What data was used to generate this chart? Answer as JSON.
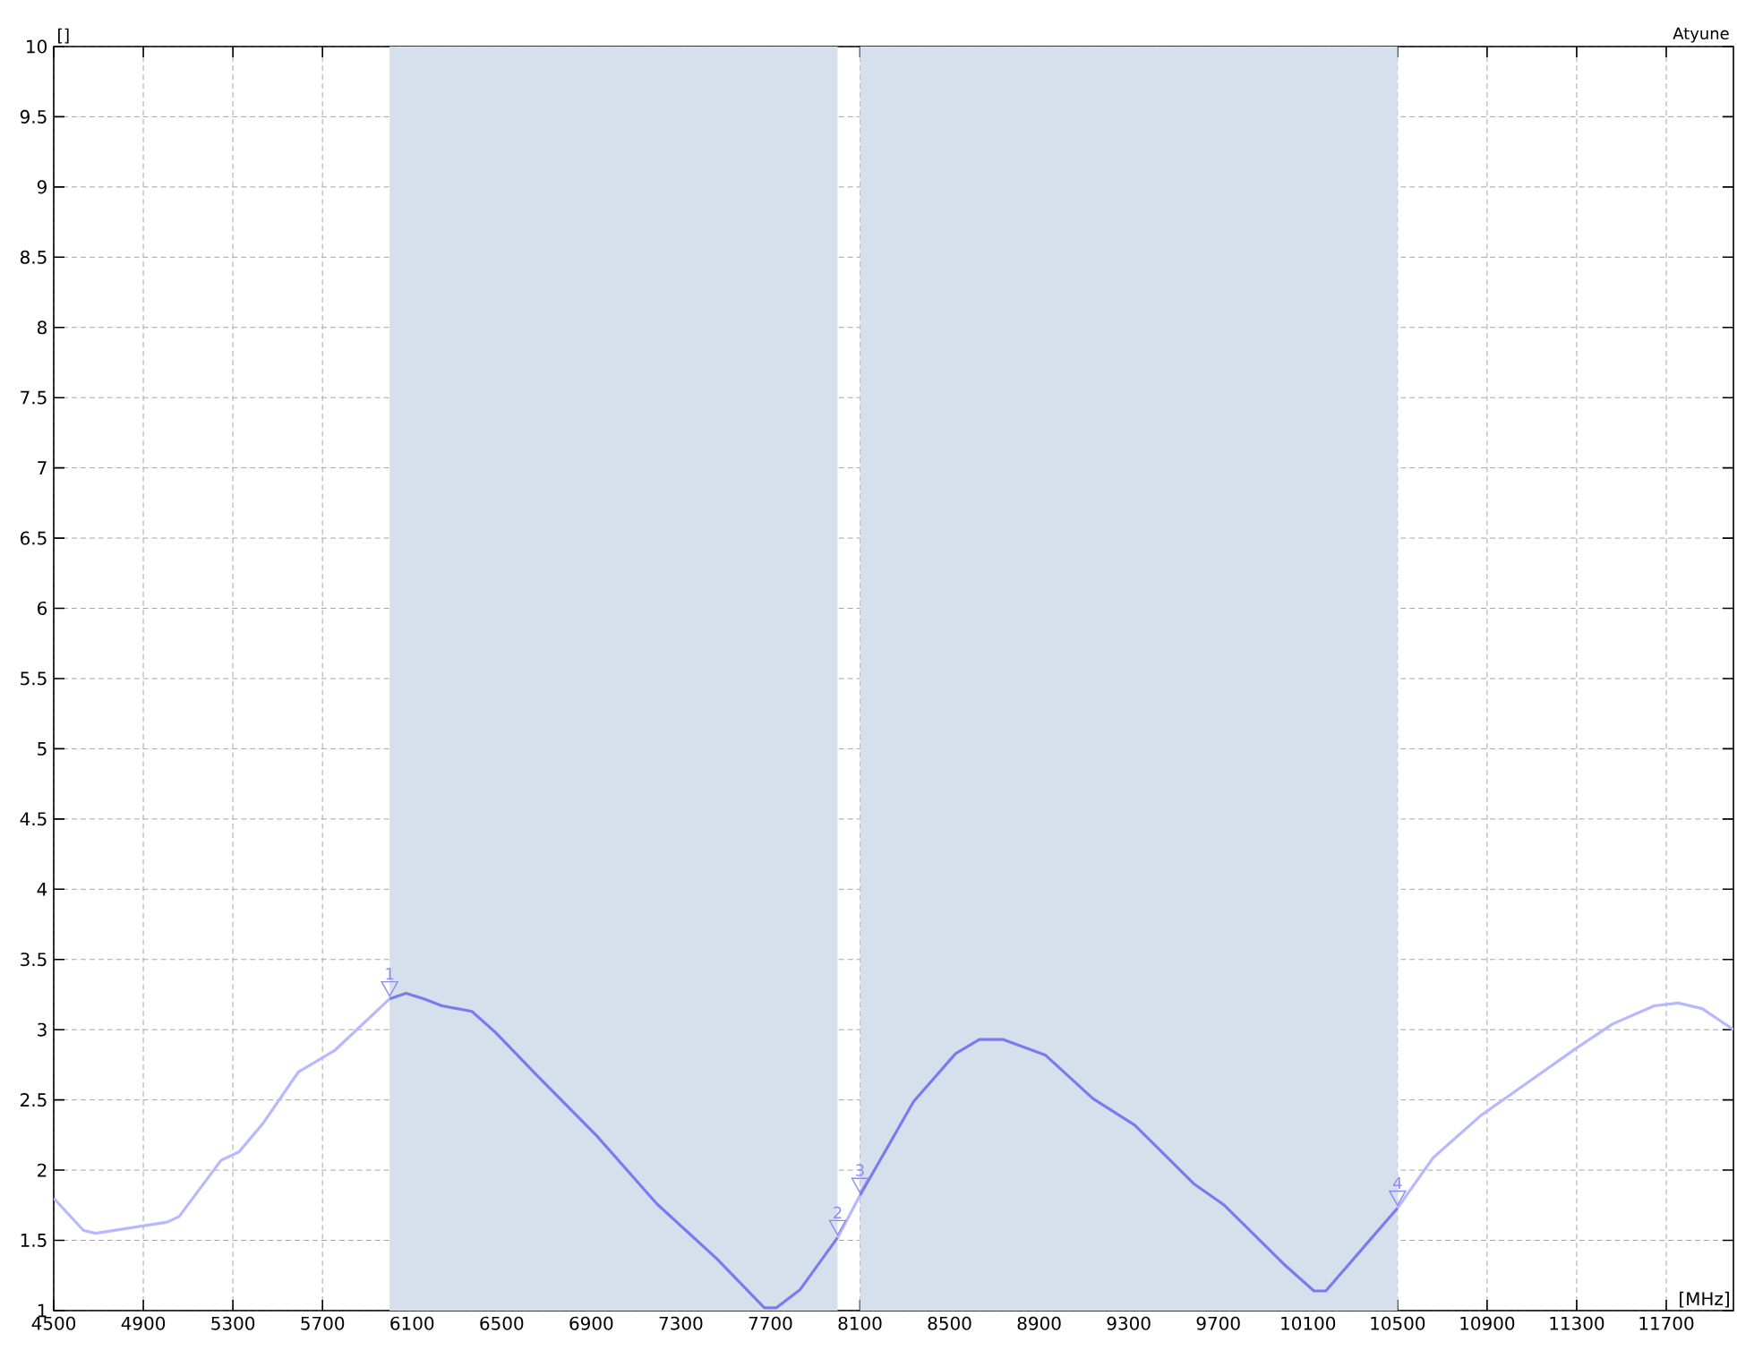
{
  "chart_data": {
    "type": "line",
    "title": "Atyune",
    "xlabel": "[MHz]",
    "ylabel": "[]",
    "xlim": [
      4500,
      12000
    ],
    "ylim": [
      1,
      10
    ],
    "xticks": [
      4500,
      4900,
      5300,
      5700,
      6100,
      6500,
      6900,
      7300,
      7700,
      8100,
      8500,
      8900,
      9300,
      9700,
      10100,
      10500,
      10900,
      11300,
      11700
    ],
    "yticks": [
      1,
      1.5,
      2,
      2.5,
      3,
      3.5,
      4,
      4.5,
      5,
      5.5,
      6,
      6.5,
      7,
      7.5,
      8,
      8.5,
      9,
      9.5,
      10
    ],
    "grid": true,
    "bands": [
      {
        "axis": "x",
        "from": 6000,
        "to": 8000,
        "color": "#d5e0ec"
      },
      {
        "axis": "x",
        "from": 8100,
        "to": 10500,
        "color": "#d5e0ec"
      }
    ],
    "series": [
      {
        "color": "#b8b8ff",
        "x": [
          4500,
          4633,
          4687,
          5007,
          5060,
          5247,
          5327,
          5433,
          5593,
          5753,
          6000
        ],
        "values": [
          1.8,
          1.57,
          1.55,
          1.63,
          1.67,
          2.07,
          2.13,
          2.33,
          2.7,
          2.85,
          3.22
        ]
      },
      {
        "color": "#7b7bef",
        "x": [
          6000,
          6073,
          6153,
          6233,
          6367,
          6473,
          6660,
          6927,
          7193,
          7460,
          7673,
          7727,
          7833,
          8000
        ],
        "values": [
          3.22,
          3.26,
          3.22,
          3.17,
          3.13,
          2.98,
          2.67,
          2.24,
          1.76,
          1.37,
          1.02,
          1.02,
          1.15,
          1.52
        ]
      },
      {
        "color": "#b8b8ff",
        "x": [
          8000,
          8100
        ],
        "values": [
          1.52,
          1.82
        ]
      },
      {
        "color": "#7b7bef",
        "x": [
          8100,
          8340,
          8527,
          8633,
          8740,
          8927,
          9140,
          9327,
          9593,
          9727,
          9993,
          10127,
          10180,
          10500
        ],
        "values": [
          1.82,
          2.49,
          2.83,
          2.93,
          2.93,
          2.82,
          2.51,
          2.32,
          1.9,
          1.75,
          1.33,
          1.14,
          1.14,
          1.73
        ]
      },
      {
        "color": "#b8b8ff",
        "x": [
          10500,
          10660,
          10873,
          11060,
          11300,
          11460,
          11647,
          11753,
          11860,
          12000
        ],
        "values": [
          1.73,
          2.09,
          2.39,
          2.6,
          2.87,
          3.04,
          3.17,
          3.19,
          3.15,
          3.0
        ]
      }
    ],
    "annotations": [
      {
        "text": "1",
        "x": 6000,
        "y": 3.22
      },
      {
        "text": "2",
        "x": 8000,
        "y": 1.52
      },
      {
        "text": "3",
        "x": 8100,
        "y": 1.82
      },
      {
        "text": "4",
        "x": 10500,
        "y": 1.73
      }
    ]
  }
}
